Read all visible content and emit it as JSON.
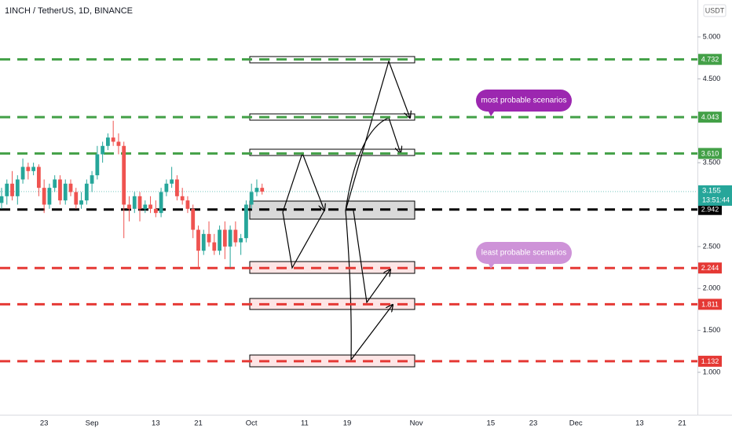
{
  "chart_data": {
    "type": "candlestick",
    "title": "1INCH / TetherUS, 1D, BINANCE",
    "currency": "USDT",
    "categories": [
      null,
      null,
      null,
      null,
      null,
      null,
      null,
      null,
      "23",
      null,
      null,
      null,
      null,
      null,
      null,
      null,
      null,
      "Sep",
      null,
      null,
      null,
      null,
      null,
      null,
      null,
      null,
      null,
      null,
      null,
      "13",
      null,
      null,
      null,
      null,
      null,
      null,
      null,
      "21",
      null,
      null,
      null,
      null,
      null,
      null,
      null,
      null,
      null,
      "Oct",
      null,
      null,
      null,
      null,
      null,
      null,
      null,
      null,
      null,
      "11",
      null,
      null,
      null,
      null,
      null,
      null,
      null,
      "19",
      null,
      null,
      null,
      null,
      null,
      null,
      null,
      null,
      null,
      null,
      null,
      null,
      "Nov",
      null,
      null,
      null,
      null,
      null,
      null,
      null,
      null,
      null,
      null,
      null,
      null,
      null,
      "15",
      null,
      null,
      null,
      null,
      null,
      null,
      null,
      "23",
      null,
      null,
      null,
      null,
      null,
      null,
      null,
      "Dec",
      null,
      null,
      null,
      null,
      null,
      null,
      null,
      null,
      null,
      null,
      null,
      "13",
      null,
      null,
      null,
      null,
      null,
      null,
      null,
      "21",
      null
    ],
    "open": [
      3.02,
      3.1,
      3.25,
      3.1,
      3.3,
      3.45,
      3.4,
      3.45,
      3.2,
      3.0,
      3.2,
      3.3,
      3.05,
      3.25,
      3.15,
      3.0,
      3.05,
      3.25,
      3.35,
      3.6,
      3.7,
      3.8,
      3.75,
      3.7,
      3.0,
      2.95,
      3.1,
      2.95,
      3.0,
      2.95,
      2.9,
      3.15,
      3.25,
      3.3,
      3.1,
      3.05,
      2.95,
      2.7,
      2.45,
      2.65,
      2.55,
      2.45,
      2.7,
      2.5,
      2.7,
      2.55,
      2.6,
      3.0,
      3.15,
      3.2,
      null,
      null,
      null,
      null,
      null,
      null,
      null,
      null,
      null,
      null,
      null,
      null,
      null,
      null,
      null,
      null,
      null,
      null,
      null,
      null,
      null,
      null,
      null,
      null,
      null,
      null,
      null,
      null,
      null,
      null,
      null,
      null,
      null,
      null,
      null,
      null,
      null,
      null,
      null,
      null,
      null,
      null,
      null,
      null,
      null,
      null,
      null,
      null,
      null,
      null,
      null,
      null,
      null,
      null,
      null,
      null,
      null,
      null,
      null,
      null,
      null,
      null,
      null,
      null,
      null,
      null,
      null,
      null,
      null,
      null,
      null,
      null,
      null,
      null,
      null,
      null,
      null,
      null,
      null,
      null
    ],
    "high": [
      3.2,
      3.3,
      3.4,
      3.35,
      3.55,
      3.5,
      3.5,
      3.48,
      3.3,
      3.25,
      3.35,
      3.35,
      3.3,
      3.3,
      3.2,
      3.15,
      3.3,
      3.4,
      3.7,
      3.75,
      3.85,
      4.0,
      3.85,
      3.75,
      3.1,
      3.15,
      3.15,
      3.05,
      3.1,
      3.05,
      3.2,
      3.3,
      3.45,
      3.35,
      3.2,
      3.1,
      3.0,
      2.75,
      2.7,
      2.8,
      2.65,
      2.75,
      2.8,
      2.75,
      2.8,
      2.65,
      3.05,
      3.25,
      3.3,
      3.25,
      null,
      null,
      null,
      null,
      null,
      null,
      null,
      null,
      null,
      null,
      null,
      null,
      null,
      null,
      null,
      null,
      null,
      null,
      null,
      null,
      null,
      null,
      null,
      null,
      null,
      null,
      null,
      null,
      null,
      null,
      null,
      null,
      null,
      null,
      null,
      null,
      null,
      null,
      null,
      null,
      null,
      null,
      null,
      null,
      null,
      null,
      null,
      null,
      null,
      null,
      null,
      null,
      null,
      null,
      null,
      null,
      null,
      null,
      null,
      null,
      null,
      null,
      null,
      null,
      null,
      null,
      null,
      null,
      null,
      null,
      null,
      null,
      null,
      null,
      null,
      null,
      null,
      null,
      null,
      null
    ],
    "low": [
      2.95,
      3.0,
      3.05,
      3.0,
      3.25,
      3.3,
      3.35,
      3.1,
      2.9,
      2.95,
      3.15,
      3.0,
      3.0,
      3.1,
      2.95,
      2.95,
      3.0,
      3.15,
      3.3,
      3.5,
      3.65,
      3.7,
      3.6,
      2.6,
      2.8,
      2.9,
      2.8,
      2.9,
      2.9,
      2.85,
      2.85,
      3.1,
      3.2,
      3.05,
      3.0,
      2.9,
      2.6,
      2.25,
      2.4,
      2.5,
      2.4,
      2.4,
      2.35,
      2.25,
      2.5,
      2.4,
      2.55,
      2.95,
      3.1,
      3.12,
      null,
      null,
      null,
      null,
      null,
      null,
      null,
      null,
      null,
      null,
      null,
      null,
      null,
      null,
      null,
      null,
      null,
      null,
      null,
      null,
      null,
      null,
      null,
      null,
      null,
      null,
      null,
      null,
      null,
      null,
      null,
      null,
      null,
      null,
      null,
      null,
      null,
      null,
      null,
      null,
      null,
      null,
      null,
      null,
      null,
      null,
      null,
      null,
      null,
      null,
      null,
      null,
      null,
      null,
      null,
      null,
      null,
      null,
      null,
      null,
      null,
      null,
      null,
      null,
      null,
      null,
      null,
      null,
      null,
      null,
      null,
      null,
      null,
      null,
      null,
      null,
      null,
      null,
      null,
      null
    ],
    "close": [
      3.1,
      3.25,
      3.1,
      3.3,
      3.45,
      3.4,
      3.45,
      3.2,
      3.0,
      3.2,
      3.3,
      3.05,
      3.25,
      3.15,
      3.0,
      3.05,
      3.25,
      3.35,
      3.6,
      3.7,
      3.8,
      3.75,
      3.7,
      3.0,
      2.95,
      3.1,
      2.95,
      3.0,
      2.95,
      2.9,
      3.15,
      3.25,
      3.3,
      3.1,
      3.05,
      2.95,
      2.7,
      2.45,
      2.65,
      2.55,
      2.45,
      2.7,
      2.5,
      2.7,
      2.55,
      2.6,
      3.0,
      3.15,
      3.2,
      3.155,
      null,
      null,
      null,
      null,
      null,
      null,
      null,
      null,
      null,
      null,
      null,
      null,
      null,
      null,
      null,
      null,
      null,
      null,
      null,
      null,
      null,
      null,
      null,
      null,
      null,
      null,
      null,
      null,
      null,
      null,
      null,
      null,
      null,
      null,
      null,
      null,
      null,
      null,
      null,
      null,
      null,
      null,
      null,
      null,
      null,
      null,
      null,
      null,
      null,
      null,
      null,
      null,
      null,
      null,
      null,
      null,
      null,
      null,
      null,
      null,
      null,
      null,
      null,
      null,
      null,
      null,
      null,
      null,
      null,
      null,
      null,
      null,
      null,
      null,
      null,
      null,
      null,
      null,
      null,
      null
    ],
    "up_color": "#26a69a",
    "down_color": "#ef5350",
    "ylim": [
      0.5,
      5.4
    ],
    "yticks": [
      {
        "value": 5,
        "label": "5.000"
      },
      {
        "value": 4.5,
        "label": "4.500"
      },
      {
        "value": 3.5,
        "label": "3.500"
      },
      {
        "value": 2.5,
        "label": "2.500"
      },
      {
        "value": 2,
        "label": "2.000"
      },
      {
        "value": 1.5,
        "label": "1.500"
      },
      {
        "value": 1,
        "label": "1.000"
      }
    ],
    "levels": [
      {
        "price": 4.732,
        "color": "#43a047"
      },
      {
        "price": 4.043,
        "color": "#43a047"
      },
      {
        "price": {
          "value": 3.61,
          "label": "3.610"
        },
        "color": "#43a047"
      },
      {
        "price": 2.942,
        "color": "#000000"
      },
      {
        "price": 2.244,
        "color": "#e53935"
      },
      {
        "price": 1.811,
        "color": "#e53935"
      },
      {
        "price": 1.132,
        "color": "#e53935"
      }
    ],
    "last_price": 3.155,
    "countdown": "13:51:44",
    "last_price_color": "#26a69a",
    "annotations": [
      {
        "text": "most probable scenarios",
        "color": "#9c27b0"
      },
      {
        "text": "least probable scenarios",
        "color": "#ce93d8"
      }
    ]
  }
}
